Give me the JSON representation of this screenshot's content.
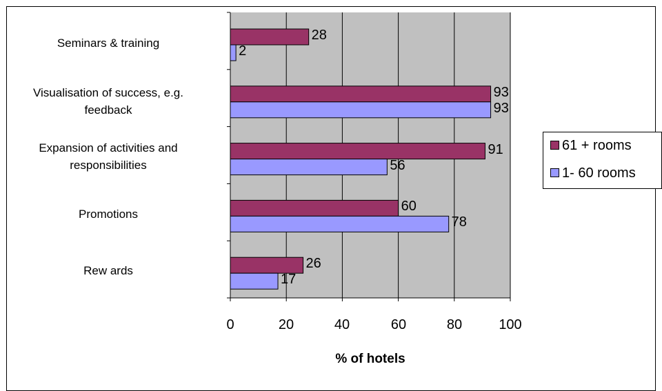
{
  "chart_data": {
    "type": "bar",
    "orientation": "horizontal",
    "categories": [
      "Seminars & training",
      "Visualisation of success, e.g. feedback",
      "Expansion of activities and responsibilities",
      "Promotions",
      "Rew ards"
    ],
    "category_lines": [
      [
        "Seminars & training"
      ],
      [
        "Visualisation of success, e.g.",
        "feedback"
      ],
      [
        "Expansion of activities and",
        "responsibilities"
      ],
      [
        "Promotions"
      ],
      [
        "Rew ards"
      ]
    ],
    "series": [
      {
        "name": "61 + rooms",
        "color": "#993366",
        "values": [
          28,
          93,
          91,
          60,
          26
        ]
      },
      {
        "name": "1- 60 rooms",
        "color": "#9999ff",
        "values": [
          2,
          93,
          56,
          78,
          17
        ]
      }
    ],
    "xlabel": "% of hotels",
    "xlim": [
      0,
      100
    ],
    "xticks": [
      "0",
      "20",
      "40",
      "60",
      "80",
      "100"
    ],
    "grid": true,
    "plot_background": "#c0c0c0",
    "legend_position": "right",
    "data_labels": true
  }
}
